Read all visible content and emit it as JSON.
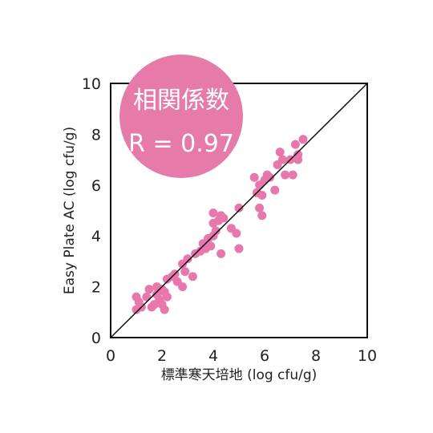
{
  "colors": {
    "point": "#e877ac",
    "badge": "#e67aa8",
    "frame": "#111111",
    "identity_line": "#111111"
  },
  "badge": {
    "title": "相関係数",
    "value": "R = 0.97"
  },
  "chart_data": {
    "type": "scatter",
    "xlabel": "標準寒天培地 (log cfu/g)",
    "ylabel": "Easy Plate AC (log cfu/g)",
    "xlim": [
      0,
      10
    ],
    "ylim": [
      0,
      10
    ],
    "x_ticks": [
      "0",
      "2",
      "4",
      "6",
      "8",
      "10"
    ],
    "y_ticks": [
      "0",
      "2",
      "4",
      "6",
      "8",
      "10"
    ],
    "grid": false,
    "reference_line": "y = x",
    "points": [
      [
        1.0,
        1.6
      ],
      [
        1.0,
        1.1
      ],
      [
        1.2,
        1.2
      ],
      [
        1.1,
        1.4
      ],
      [
        1.4,
        1.6
      ],
      [
        1.5,
        1.9
      ],
      [
        1.6,
        1.2
      ],
      [
        1.7,
        1.3
      ],
      [
        1.8,
        2.0
      ],
      [
        1.8,
        1.7
      ],
      [
        1.9,
        1.5
      ],
      [
        2.0,
        1.9
      ],
      [
        2.0,
        1.3
      ],
      [
        2.1,
        1.8
      ],
      [
        2.1,
        1.1
      ],
      [
        2.2,
        1.6
      ],
      [
        2.2,
        2.3
      ],
      [
        2.4,
        2.4
      ],
      [
        2.5,
        2.5
      ],
      [
        2.6,
        2.2
      ],
      [
        2.8,
        2.0
      ],
      [
        2.8,
        2.9
      ],
      [
        2.9,
        2.6
      ],
      [
        3.0,
        3.1
      ],
      [
        3.2,
        2.4
      ],
      [
        3.3,
        3.3
      ],
      [
        3.5,
        3.4
      ],
      [
        3.6,
        3.7
      ],
      [
        3.7,
        3.5
      ],
      [
        3.8,
        3.9
      ],
      [
        3.9,
        3.6
      ],
      [
        4.0,
        4.0
      ],
      [
        4.0,
        4.9
      ],
      [
        4.0,
        4.5
      ],
      [
        4.1,
        4.2
      ],
      [
        4.2,
        4.6
      ],
      [
        4.3,
        3.3
      ],
      [
        4.3,
        4.8
      ],
      [
        4.4,
        4.7
      ],
      [
        4.7,
        4.3
      ],
      [
        4.9,
        4.1
      ],
      [
        5.0,
        3.5
      ],
      [
        5.0,
        5.1
      ],
      [
        5.6,
        6.3
      ],
      [
        5.7,
        5.7
      ],
      [
        5.8,
        6.0
      ],
      [
        5.8,
        5.1
      ],
      [
        5.9,
        4.8
      ],
      [
        5.9,
        5.6
      ],
      [
        6.0,
        6.2
      ],
      [
        6.1,
        6.4
      ],
      [
        6.2,
        6.3
      ],
      [
        6.4,
        5.8
      ],
      [
        6.5,
        6.8
      ],
      [
        6.6,
        7.3
      ],
      [
        6.7,
        7.0
      ],
      [
        6.8,
        6.4
      ],
      [
        7.0,
        7.0
      ],
      [
        7.1,
        6.4
      ],
      [
        7.2,
        7.6
      ],
      [
        7.3,
        7.2
      ],
      [
        7.5,
        7.8
      ],
      [
        7.3,
        7.0
      ]
    ]
  }
}
